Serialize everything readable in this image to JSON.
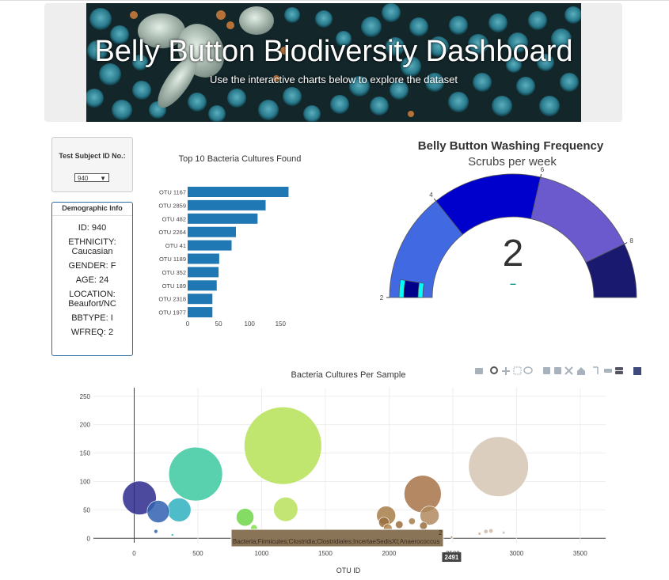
{
  "header": {
    "title": "Belly Button Biodiversity Dashboard",
    "subtitle": "Use the interactive charts below to explore the dataset"
  },
  "selector": {
    "label": "Test Subject ID No.:",
    "value": "940"
  },
  "demographics": {
    "heading": "Demographic Info",
    "lines": [
      "ID: 940",
      "ETHNICITY: Caucasian",
      "GENDER: F",
      "AGE: 24",
      "LOCATION: Beaufort/NC",
      "BBTYPE: I",
      "WFREQ: 2"
    ]
  },
  "colors": {
    "bar": "#1f77b4",
    "gauge_needle": "#1a9a8a"
  },
  "chart_data": [
    {
      "type": "bar",
      "orientation": "horizontal",
      "title": "Top 10 Bacteria Cultures Found",
      "categories": [
        "OTU 1167",
        "OTU 2859",
        "OTU 482",
        "OTU 2264",
        "OTU 41",
        "OTU 1189",
        "OTU 352",
        "OTU 189",
        "OTU 2318",
        "OTU 1977"
      ],
      "values": [
        163,
        126,
        113,
        78,
        71,
        51,
        50,
        47,
        40,
        40
      ],
      "xlim": [
        0,
        165
      ],
      "xticks": [
        0,
        50,
        100,
        150
      ]
    },
    {
      "type": "gauge",
      "title": "Belly Button Washing Frequency",
      "subtitle": "Scrubs per week",
      "value": 2,
      "value_label": "2",
      "range": [
        2,
        9
      ],
      "tick_values": [
        2,
        4,
        6,
        8
      ],
      "tick_labels": [
        "2",
        "4",
        "6",
        "8"
      ],
      "steps": [
        {
          "range": [
            2,
            4
          ],
          "color": "#4169e1"
        },
        {
          "range": [
            4,
            6
          ],
          "color": "#0000cd"
        },
        {
          "range": [
            6,
            8
          ],
          "color": "#6a5acd"
        },
        {
          "range": [
            8,
            9
          ],
          "color": "#191970"
        }
      ],
      "bar_color": "#00008b",
      "bar_edge_color": "#00ffff",
      "delta_label": "–"
    },
    {
      "type": "scatter",
      "title": "Bacteria Cultures Per Sample",
      "xlabel": "OTU ID",
      "xlim": [
        -320,
        3700
      ],
      "ylim": [
        -8,
        265
      ],
      "xticks": [
        0,
        500,
        1000,
        1500,
        2000,
        2500,
        3000,
        3500
      ],
      "yticks": [
        0,
        50,
        100,
        150,
        200,
        250
      ],
      "points": [
        {
          "x": 41,
          "y": 71,
          "size": 71,
          "color": "#2d2a8e"
        },
        {
          "x": 189,
          "y": 47,
          "size": 47,
          "color": "#3062b0"
        },
        {
          "x": 352,
          "y": 50,
          "size": 50,
          "color": "#2fb0c0"
        },
        {
          "x": 482,
          "y": 113,
          "size": 113,
          "color": "#3cc9a0"
        },
        {
          "x": 170,
          "y": 12,
          "size": 8,
          "color": "#3062b0"
        },
        {
          "x": 300,
          "y": 6,
          "size": 4,
          "color": "#2fb0c0"
        },
        {
          "x": 870,
          "y": 37,
          "size": 37,
          "color": "#6fd64a"
        },
        {
          "x": 940,
          "y": 18,
          "size": 14,
          "color": "#7ee04a"
        },
        {
          "x": 1167,
          "y": 163,
          "size": 163,
          "color": "#b5e256"
        },
        {
          "x": 1189,
          "y": 51,
          "size": 51,
          "color": "#b8e05c"
        },
        {
          "x": 1977,
          "y": 40,
          "size": 40,
          "color": "#a77e4a"
        },
        {
          "x": 1960,
          "y": 28,
          "size": 22,
          "color": "#9a6e3e"
        },
        {
          "x": 1990,
          "y": 18,
          "size": 18,
          "color": "#b0864e"
        },
        {
          "x": 2080,
          "y": 24,
          "size": 16,
          "color": "#9a6e3e"
        },
        {
          "x": 2180,
          "y": 30,
          "size": 14,
          "color": "#a77e4a"
        },
        {
          "x": 2264,
          "y": 78,
          "size": 78,
          "color": "#a77346"
        },
        {
          "x": 2318,
          "y": 40,
          "size": 40,
          "color": "#b08a5e"
        },
        {
          "x": 2270,
          "y": 22,
          "size": 16,
          "color": "#9a6e3e"
        },
        {
          "x": 2350,
          "y": 10,
          "size": 8,
          "color": "#b59070"
        },
        {
          "x": 2491,
          "y": 2,
          "size": 4,
          "color": "#b59070"
        },
        {
          "x": 2710,
          "y": 8,
          "size": 6,
          "color": "#c8b09a"
        },
        {
          "x": 2760,
          "y": 12,
          "size": 9,
          "color": "#cdb9a5"
        },
        {
          "x": 2800,
          "y": 13,
          "size": 9,
          "color": "#cdb9a5"
        },
        {
          "x": 2900,
          "y": 10,
          "size": 6,
          "color": "#d2c0ae"
        },
        {
          "x": 2859,
          "y": 126,
          "size": 126,
          "color": "#d6c6b4"
        }
      ],
      "tooltip": {
        "text": "Bacteria;Firmicutes;Clostridia;Clostridiales;IncertaeSedisXI;Anaerococcus",
        "value": "2",
        "x_label": "2491"
      }
    }
  ]
}
